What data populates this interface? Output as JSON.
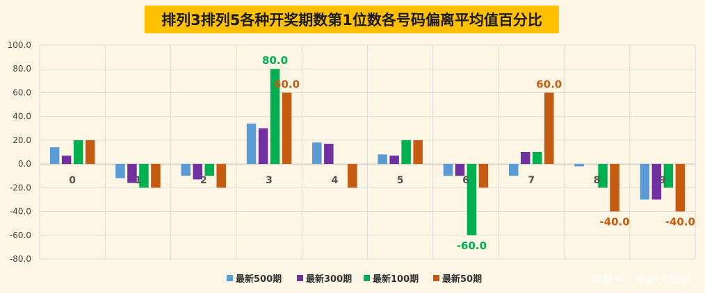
{
  "chart_data": {
    "type": "bar",
    "title": "排列3排列5各种开奖期数第1位数各号码偏离平均值百分比",
    "categories": [
      "0",
      "1",
      "2",
      "3",
      "4",
      "5",
      "6",
      "7",
      "8",
      "9"
    ],
    "ylim": [
      -80,
      100
    ],
    "yticks": [
      "100.0",
      "80.0",
      "60.0",
      "40.0",
      "20.0",
      "0.0",
      "-20.0",
      "-40.0",
      "-60.0",
      "-80.0"
    ],
    "grid": true,
    "legend_position": "bottom",
    "series": [
      {
        "name": "最新500期",
        "color": "#5b9bd5",
        "values": [
          14,
          -12,
          -10,
          34,
          18,
          8,
          -10,
          -10,
          -2,
          -30
        ]
      },
      {
        "name": "最新300期",
        "color": "#7030a0",
        "values": [
          7,
          -16,
          -13,
          30,
          17,
          7,
          -10,
          10,
          0,
          -30
        ]
      },
      {
        "name": "最新100期",
        "color": "#00b050",
        "values": [
          20,
          -20,
          -10,
          80,
          0,
          20,
          -60,
          10,
          -20,
          -20
        ]
      },
      {
        "name": "最新50期",
        "color": "#c55a11",
        "values": [
          20,
          -20,
          -20,
          60,
          -20,
          20,
          -20,
          60,
          -40,
          -40
        ]
      }
    ],
    "data_labels": [
      {
        "series": 2,
        "index": 3,
        "text": "80.0"
      },
      {
        "series": 3,
        "index": 3,
        "text": "60.0"
      },
      {
        "series": 2,
        "index": 6,
        "text": "-60.0"
      },
      {
        "series": 3,
        "index": 7,
        "text": "60.0"
      },
      {
        "series": 3,
        "index": 8,
        "text": "-40.0"
      },
      {
        "series": 3,
        "index": 9,
        "text": "-40.0"
      }
    ]
  },
  "watermark": "网易号 | 中彩大数据",
  "colors": {
    "title_bg": "#ffc000",
    "background": "#fdf6e4"
  }
}
